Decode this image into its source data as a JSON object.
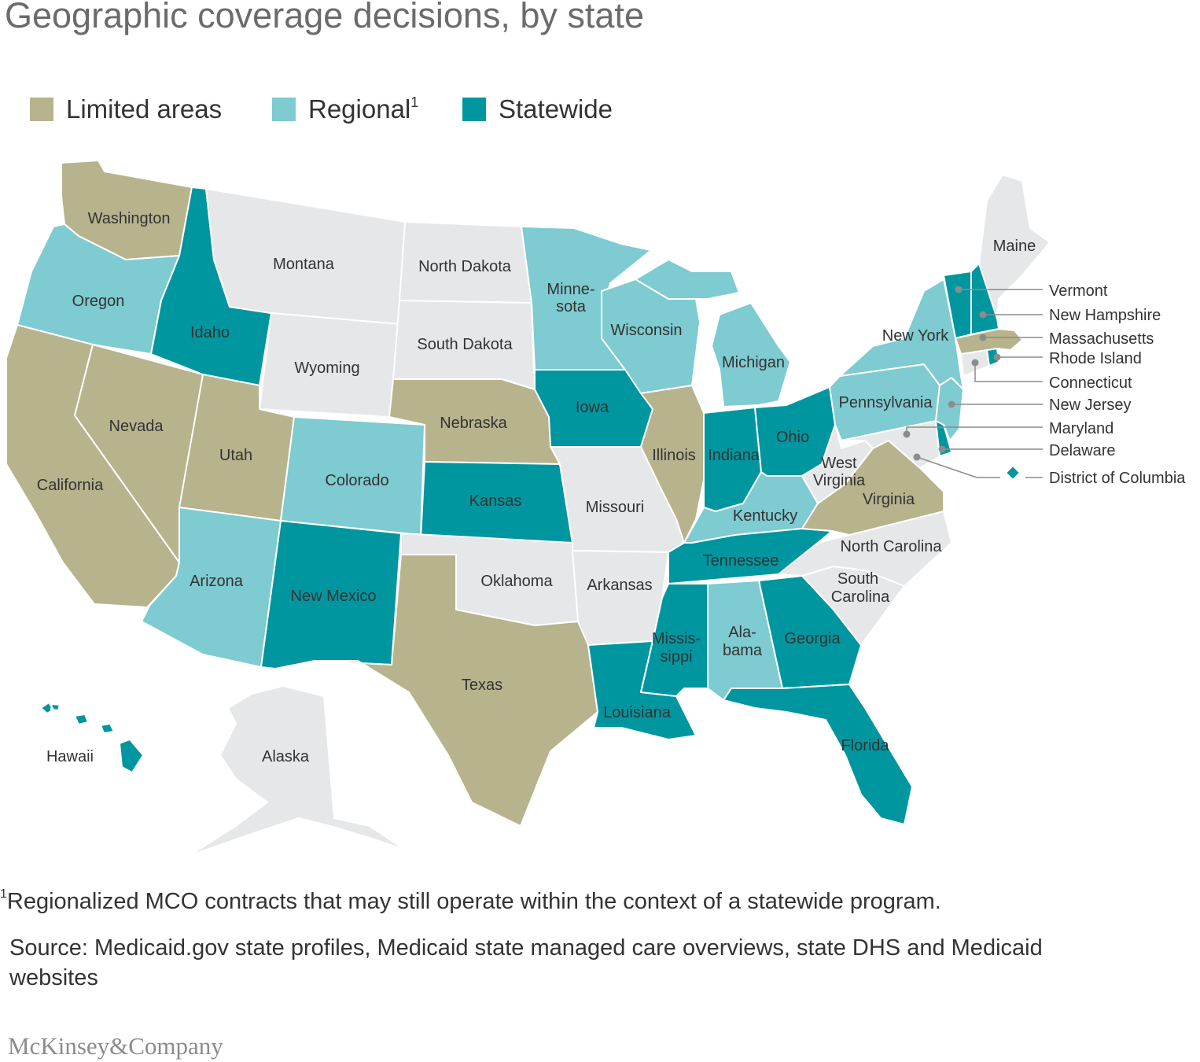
{
  "title": "Geographic coverage decisions, by state",
  "legend": [
    {
      "key": "limited",
      "label": "Limited areas",
      "sup": "",
      "color": "#b7b38d"
    },
    {
      "key": "regional",
      "label": "Regional",
      "sup": "1",
      "color": "#7ecbd1"
    },
    {
      "key": "statewide",
      "label": "Statewide",
      "sup": "",
      "color": "#00969f"
    }
  ],
  "colors": {
    "limited": "#b7b38d",
    "regional": "#7ecbd1",
    "statewide": "#00969f",
    "none": "#e6e7e8"
  },
  "states": {
    "Washington": "limited",
    "Oregon": "regional",
    "California": "limited",
    "Nevada": "limited",
    "Idaho": "statewide",
    "Montana": "none",
    "Wyoming": "none",
    "Utah": "limited",
    "Arizona": "regional",
    "Colorado": "regional",
    "New Mexico": "statewide",
    "North Dakota": "none",
    "South Dakota": "none",
    "Nebraska": "limited",
    "Kansas": "statewide",
    "Oklahoma": "none",
    "Texas": "limited",
    "Minnesota": "regional",
    "Iowa": "statewide",
    "Missouri": "none",
    "Arkansas": "none",
    "Louisiana": "statewide",
    "Wisconsin": "regional",
    "Illinois": "limited",
    "Michigan": "regional",
    "Indiana": "statewide",
    "Ohio": "statewide",
    "Kentucky": "regional",
    "Tennessee": "statewide",
    "Mississippi": "statewide",
    "Alabama": "regional",
    "Georgia": "statewide",
    "Florida": "statewide",
    "South Carolina": "none",
    "North Carolina": "none",
    "Virginia": "limited",
    "West Virginia": "none",
    "Pennsylvania": "regional",
    "New York": "regional",
    "New Jersey": "regional",
    "Delaware": "statewide",
    "Maryland": "none",
    "District of Columbia": "statewide",
    "Connecticut": "none",
    "Rhode Island": "statewide",
    "Massachusetts": "limited",
    "Vermont": "statewide",
    "New Hampshire": "statewide",
    "Maine": "none",
    "Alaska": "none",
    "Hawaii": "statewide"
  },
  "labels": {
    "washington": "Washington",
    "oregon": "Oregon",
    "california": "California",
    "nevada": "Nevada",
    "idaho": "Idaho",
    "montana": "Montana",
    "wyoming": "Wyoming",
    "utah": "Utah",
    "arizona": "Arizona",
    "colorado": "Colorado",
    "new_mexico": "New Mexico",
    "north_dakota": "North Dakota",
    "south_dakota": "South Dakota",
    "nebraska": "Nebraska",
    "kansas": "Kansas",
    "oklahoma": "Oklahoma",
    "texas": "Texas",
    "minnesota_1": "Minne-",
    "minnesota_2": "sota",
    "iowa": "Iowa",
    "missouri": "Missouri",
    "arkansas": "Arkansas",
    "louisiana": "Louisiana",
    "wisconsin": "Wisconsin",
    "illinois": "Illinois",
    "michigan": "Michigan",
    "indiana": "Indiana",
    "ohio": "Ohio",
    "kentucky": "Kentucky",
    "tennessee": "Tennessee",
    "mississippi_1": "Missis-",
    "mississippi_2": "sippi",
    "alabama_1": "Ala-",
    "alabama_2": "bama",
    "georgia": "Georgia",
    "florida": "Florida",
    "south_carolina_1": "South",
    "south_carolina_2": "Carolina",
    "north_carolina": "North Carolina",
    "virginia": "Virginia",
    "west_virginia_1": "West",
    "west_virginia_2": "Virginia",
    "pennsylvania": "Pennsylvania",
    "new_york": "New York",
    "maine": "Maine",
    "alaska": "Alaska",
    "hawaii": "Hawaii"
  },
  "callouts": {
    "vermont": "Vermont",
    "new_hampshire": "New Hampshire",
    "massachusetts": "Massachusetts",
    "rhode_island": "Rhode Island",
    "connecticut": "Connecticut",
    "new_jersey": "New Jersey",
    "maryland": "Maryland",
    "delaware": "Delaware",
    "dc": "District of Columbia"
  },
  "footnote": {
    "marker": "1",
    "text": "Regionalized MCO contracts that may still operate within the context of a statewide program."
  },
  "source": "Source: Medicaid.gov state profiles, Medicaid state managed care overviews, state DHS and Medicaid websites",
  "brand": "McKinsey&Company"
}
